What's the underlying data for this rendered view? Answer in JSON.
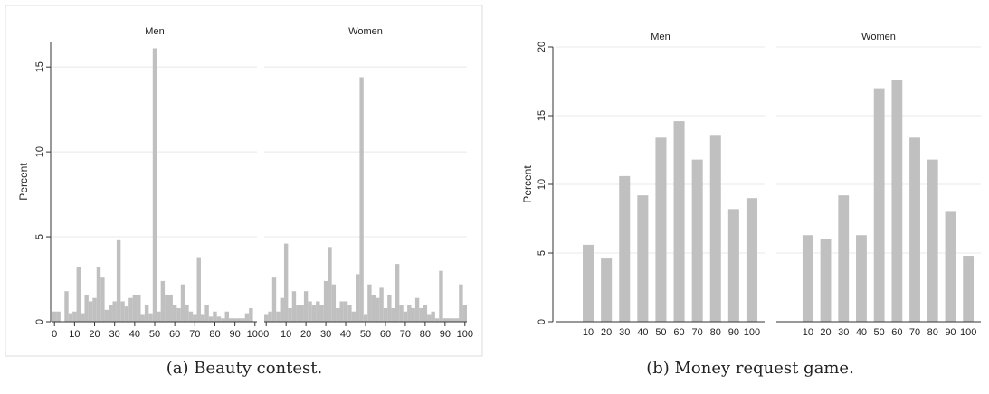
{
  "figure": {
    "caption_a": "(a) Beauty contest.",
    "caption_b": "(b) Money request game."
  },
  "colors": {
    "bar": "#c0c0c0",
    "grid": "#e8e8e8",
    "axis": "#333333",
    "frame": "#dddddd"
  },
  "chart_data": [
    {
      "type": "bar",
      "ylabel": "Percent",
      "ylim": [
        0,
        16.5
      ],
      "yticks": [
        0,
        5,
        10,
        15
      ],
      "xlim": [
        -1,
        101
      ],
      "xticks": [
        0,
        10,
        20,
        30,
        40,
        50,
        60,
        70,
        80,
        90,
        100
      ],
      "bin_width": 2,
      "panels": [
        {
          "title": "Men",
          "x": [
            0,
            2,
            6,
            8,
            10,
            12,
            14,
            16,
            18,
            20,
            22,
            24,
            26,
            28,
            30,
            32,
            34,
            36,
            38,
            40,
            42,
            44,
            46,
            48,
            50,
            52,
            54,
            56,
            58,
            60,
            62,
            64,
            66,
            68,
            70,
            72,
            74,
            76,
            78,
            80,
            82,
            84,
            86,
            88,
            90,
            92,
            94,
            96,
            98
          ],
          "values": [
            0.6,
            0.6,
            1.8,
            0.5,
            0.6,
            3.2,
            0.5,
            1.6,
            1.2,
            1.4,
            3.2,
            2.6,
            0.7,
            1.0,
            1.2,
            4.8,
            1.2,
            0.9,
            1.4,
            1.6,
            1.6,
            0.4,
            1.0,
            0.5,
            16.1,
            0.6,
            2.4,
            1.6,
            1.6,
            1.0,
            0.8,
            2.2,
            1.0,
            0.6,
            0.4,
            3.8,
            0.4,
            1.0,
            0.3,
            0.6,
            0.3,
            0.2,
            0.6,
            0.2,
            0.2,
            0.2,
            0.2,
            0.5,
            0.8
          ]
        },
        {
          "title": "Women",
          "x": [
            0,
            2,
            4,
            6,
            8,
            10,
            12,
            14,
            16,
            18,
            20,
            22,
            24,
            26,
            28,
            30,
            32,
            34,
            36,
            38,
            40,
            42,
            44,
            46,
            48,
            50,
            52,
            54,
            56,
            58,
            60,
            62,
            64,
            66,
            68,
            70,
            72,
            74,
            76,
            78,
            80,
            82,
            84,
            86,
            88,
            90,
            92,
            94,
            96,
            98,
            100
          ],
          "values": [
            0.4,
            0.6,
            2.6,
            0.6,
            1.4,
            4.6,
            0.8,
            1.8,
            1.0,
            1.0,
            1.8,
            1.2,
            1.0,
            1.2,
            1.0,
            2.4,
            4.4,
            2.2,
            0.8,
            1.2,
            1.2,
            1.0,
            0.6,
            2.8,
            14.4,
            0.4,
            2.2,
            1.6,
            1.4,
            2.0,
            0.8,
            1.6,
            0.8,
            3.4,
            1.0,
            0.6,
            1.0,
            0.8,
            1.4,
            0.8,
            1.0,
            0.4,
            0.6,
            0.2,
            3.0,
            0.2,
            0.2,
            0.2,
            0.2,
            2.2,
            1.0
          ]
        }
      ]
    },
    {
      "type": "bar",
      "ylabel": "Percent",
      "ylim": [
        0,
        20
      ],
      "yticks": [
        0,
        5,
        10,
        15,
        20
      ],
      "categories": [
        "10",
        "20",
        "30",
        "40",
        "50",
        "60",
        "70",
        "80",
        "90",
        "100"
      ],
      "panels": [
        {
          "title": "Men",
          "values": [
            5.6,
            4.6,
            10.6,
            9.2,
            13.4,
            14.6,
            11.8,
            13.6,
            8.2,
            9.0
          ]
        },
        {
          "title": "Women",
          "values": [
            6.3,
            6.0,
            9.2,
            6.3,
            17.0,
            17.6,
            13.4,
            11.8,
            8.0,
            4.8
          ]
        }
      ]
    }
  ]
}
